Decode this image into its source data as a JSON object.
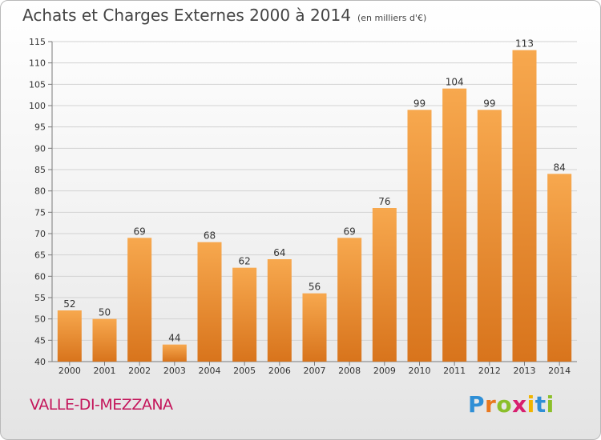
{
  "header": {
    "title": "Achats et Charges Externes 2000 à 2014",
    "subtitle": "(en milliers d'€)"
  },
  "footer": {
    "commune": "VALLE-DI-MEZZANA",
    "logo": {
      "text": "Proxiti",
      "letter_colors": [
        "#2f8fd6",
        "#e9781f",
        "#8bbf2a",
        "#d81f6f",
        "#f0b400",
        "#2f8fd6",
        "#8bbf2a"
      ]
    }
  },
  "colors": {
    "bar_light": "#f7a84e",
    "bar_dark": "#d8741c",
    "grid": "#d2d2d2",
    "axis": "#7a7a7a",
    "text": "#333333"
  },
  "chart_data": {
    "type": "bar",
    "title": "Achats et Charges Externes 2000 à 2014",
    "subtitle": "(en milliers d'€)",
    "categories": [
      "2000",
      "2001",
      "2002",
      "2003",
      "2004",
      "2005",
      "2006",
      "2007",
      "2008",
      "2009",
      "2010",
      "2011",
      "2012",
      "2013",
      "2014"
    ],
    "values": [
      52,
      50,
      69,
      44,
      68,
      62,
      64,
      56,
      69,
      76,
      99,
      104,
      99,
      113,
      84
    ],
    "ylim": [
      40,
      115
    ],
    "yticks": [
      40,
      45,
      50,
      55,
      60,
      65,
      70,
      75,
      80,
      85,
      90,
      95,
      100,
      105,
      110,
      115
    ],
    "grid": true,
    "data_labels": true
  }
}
